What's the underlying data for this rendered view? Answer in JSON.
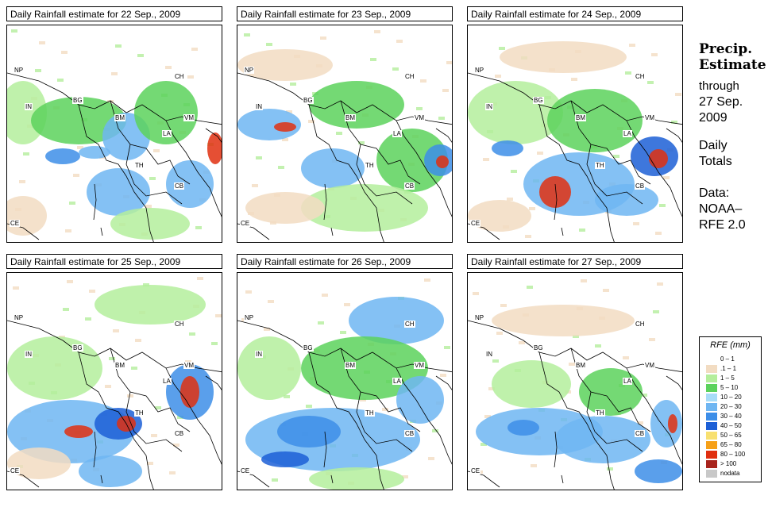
{
  "panels": [
    {
      "title": "Daily Rainfall estimate for  22 Sep., 2009"
    },
    {
      "title": "Daily Rainfall estimate for  23 Sep., 2009"
    },
    {
      "title": "Daily Rainfall estimate for  24 Sep., 2009"
    },
    {
      "title": "Daily Rainfall estimate for  25 Sep., 2009"
    },
    {
      "title": "Daily Rainfall estimate for  26 Sep., 2009"
    },
    {
      "title": "Daily Rainfall estimate for  27 Sep., 2009"
    }
  ],
  "country_labels": [
    "NP",
    "CH",
    "IN",
    "BG",
    "BM",
    "VM",
    "LA",
    "TH",
    "CB",
    "CE"
  ],
  "side_panel": {
    "title_line1": "Precip.",
    "title_line2": "Estimate",
    "through": "through",
    "date_line1": "27 Sep.",
    "date_line2": "2009",
    "daily_line1": "Daily",
    "daily_line2": "Totals",
    "data_line1": "Data:",
    "data_line2": "NOAA–",
    "data_line3": "RFE 2.0"
  },
  "legend": {
    "title": "RFE (mm)",
    "items": [
      {
        "label": "0 – 1",
        "color": "#ffffff"
      },
      {
        "label": ".1 – 1",
        "color": "#f2dcc2"
      },
      {
        "label": "1 – 5",
        "color": "#b4ee9c"
      },
      {
        "label": "5 – 10",
        "color": "#5cd25c"
      },
      {
        "label": "10 – 20",
        "color": "#a8dcf8"
      },
      {
        "label": "20 – 30",
        "color": "#6fb6f2"
      },
      {
        "label": "30 – 40",
        "color": "#3d8ee8"
      },
      {
        "label": "40 – 50",
        "color": "#1c5fd6"
      },
      {
        "label": "50 – 65",
        "color": "#f8e070"
      },
      {
        "label": "65 – 80",
        "color": "#f6a018"
      },
      {
        "label": "80 – 100",
        "color": "#e03010"
      },
      {
        "label": "> 100",
        "color": "#a8241c"
      },
      {
        "label": "nodata",
        "color": "#c8c8c8"
      }
    ]
  }
}
